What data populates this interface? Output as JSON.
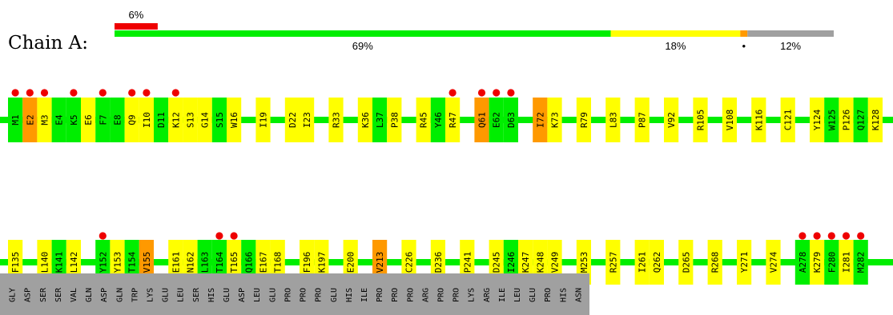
{
  "chart_data": {
    "type": "residue-quality-plot",
    "chain_label": "Chain A:",
    "top_bar_label": "6%",
    "summary_segments": [
      {
        "category": "good",
        "percent": 69,
        "label": "69%",
        "color": "#00ee00"
      },
      {
        "category": "fair",
        "percent": 18,
        "label": "18%",
        "color": "#ffff00"
      },
      {
        "category": "poor",
        "percent": 1,
        "label": "•",
        "color": "#ff9900"
      },
      {
        "category": "missing",
        "percent": 12,
        "label": "12%",
        "color": "#a0a0a0"
      }
    ],
    "outlier_percent": 6,
    "colors": {
      "good": "#00ee00",
      "fair": "#ffff00",
      "poor": "#ff9900",
      "missing": "#a0a0a0",
      "outlier": "#ee0000"
    },
    "rows": [
      [
        {
          "label": "M1",
          "q": "good",
          "dot": true
        },
        {
          "label": "E2",
          "q": "poor",
          "dot": true
        },
        {
          "label": "M3",
          "q": "fair",
          "dot": true
        },
        {
          "label": "E4",
          "q": "good",
          "dot": false
        },
        {
          "label": "K5",
          "q": "good",
          "dot": true
        },
        {
          "label": "E6",
          "q": "fair",
          "dot": false
        },
        {
          "label": "F7",
          "q": "good",
          "dot": true
        },
        {
          "label": "E8",
          "q": "good",
          "dot": false
        },
        {
          "label": "Q9",
          "q": "fair",
          "dot": true
        },
        {
          "label": "I10",
          "q": "fair",
          "dot": true
        },
        {
          "label": "D11",
          "q": "good",
          "dot": false
        },
        {
          "label": "K12",
          "q": "fair",
          "dot": true
        },
        {
          "label": "S13",
          "q": "fair",
          "dot": false
        },
        {
          "label": "G14",
          "q": "fair",
          "dot": false
        },
        {
          "label": "S15",
          "q": "good",
          "dot": false
        },
        {
          "label": "W16",
          "q": "fair",
          "dot": false
        },
        {
          "gap": true
        },
        {
          "label": "I19",
          "q": "fair",
          "dot": false
        },
        {
          "gap": true
        },
        {
          "label": "D22",
          "q": "fair",
          "dot": false
        },
        {
          "label": "I23",
          "q": "fair",
          "dot": false
        },
        {
          "gap": true
        },
        {
          "label": "R33",
          "q": "fair",
          "dot": false
        },
        {
          "gap": true
        },
        {
          "label": "K36",
          "q": "fair",
          "dot": false
        },
        {
          "label": "L37",
          "q": "good",
          "dot": false
        },
        {
          "label": "P38",
          "q": "fair",
          "dot": false
        },
        {
          "gap": true
        },
        {
          "label": "R45",
          "q": "fair",
          "dot": false
        },
        {
          "label": "Y46",
          "q": "good",
          "dot": false
        },
        {
          "label": "R47",
          "q": "fair",
          "dot": true
        },
        {
          "gap": true
        },
        {
          "label": "Q61",
          "q": "poor",
          "dot": true
        },
        {
          "label": "E62",
          "q": "good",
          "dot": true
        },
        {
          "label": "D63",
          "q": "good",
          "dot": true
        },
        {
          "gap": true
        },
        {
          "label": "I72",
          "q": "poor",
          "dot": false
        },
        {
          "label": "K73",
          "q": "fair",
          "dot": false
        },
        {
          "gap": true
        },
        {
          "label": "R79",
          "q": "fair",
          "dot": false
        },
        {
          "gap": true
        },
        {
          "label": "L83",
          "q": "fair",
          "dot": false
        },
        {
          "gap": true
        },
        {
          "label": "P87",
          "q": "fair",
          "dot": false
        },
        {
          "gap": true
        },
        {
          "label": "V92",
          "q": "fair",
          "dot": false
        },
        {
          "gap": true
        },
        {
          "label": "R105",
          "q": "fair",
          "dot": false
        },
        {
          "gap": true
        },
        {
          "label": "V108",
          "q": "fair",
          "dot": false
        },
        {
          "gap": true
        },
        {
          "label": "K116",
          "q": "fair",
          "dot": false
        },
        {
          "gap": true
        },
        {
          "label": "C121",
          "q": "fair",
          "dot": false
        },
        {
          "gap": true
        },
        {
          "label": "Y124",
          "q": "fair",
          "dot": false
        },
        {
          "label": "W125",
          "q": "good",
          "dot": false
        },
        {
          "label": "P126",
          "q": "fair",
          "dot": false
        },
        {
          "label": "Q127",
          "q": "good",
          "dot": false
        },
        {
          "label": "K128",
          "q": "fair",
          "dot": false
        }
      ],
      [
        {
          "label": "F135",
          "q": "fair",
          "dot": false
        },
        {
          "gap": true
        },
        {
          "label": "L140",
          "q": "fair",
          "dot": false
        },
        {
          "label": "K141",
          "q": "good",
          "dot": false
        },
        {
          "label": "L142",
          "q": "fair",
          "dot": false
        },
        {
          "gap": true
        },
        {
          "label": "Y152",
          "q": "good",
          "dot": true
        },
        {
          "label": "Y153",
          "q": "fair",
          "dot": false
        },
        {
          "label": "T154",
          "q": "good",
          "dot": false
        },
        {
          "label": "V155",
          "q": "poor",
          "dot": false
        },
        {
          "gap": true
        },
        {
          "label": "E161",
          "q": "fair",
          "dot": false
        },
        {
          "label": "N162",
          "q": "fair",
          "dot": false
        },
        {
          "label": "L163",
          "q": "good",
          "dot": false
        },
        {
          "label": "T164",
          "q": "good",
          "dot": true
        },
        {
          "label": "T165",
          "q": "fair",
          "dot": true
        },
        {
          "label": "Q166",
          "q": "good",
          "dot": false
        },
        {
          "label": "E167",
          "q": "fair",
          "dot": false
        },
        {
          "label": "T168",
          "q": "fair",
          "dot": false
        },
        {
          "gap": true
        },
        {
          "label": "F196",
          "q": "fair",
          "dot": false
        },
        {
          "label": "K197",
          "q": "fair",
          "dot": false
        },
        {
          "gap": true
        },
        {
          "label": "E200",
          "q": "fair",
          "dot": false
        },
        {
          "gap": true
        },
        {
          "label": "V213",
          "q": "poor",
          "dot": false
        },
        {
          "gap": true
        },
        {
          "label": "C226",
          "q": "fair",
          "dot": false
        },
        {
          "gap": true
        },
        {
          "label": "D236",
          "q": "fair",
          "dot": false
        },
        {
          "gap": true
        },
        {
          "label": "P241",
          "q": "fair",
          "dot": false
        },
        {
          "gap": true
        },
        {
          "label": "D245",
          "q": "fair",
          "dot": false
        },
        {
          "label": "I246",
          "q": "good",
          "dot": false
        },
        {
          "label": "K247",
          "q": "fair",
          "dot": false
        },
        {
          "label": "K248",
          "q": "fair",
          "dot": false
        },
        {
          "label": "V249",
          "q": "fair",
          "dot": false
        },
        {
          "gap": true
        },
        {
          "label": "M253",
          "q": "fair",
          "dot": false
        },
        {
          "gap": true
        },
        {
          "label": "R257",
          "q": "fair",
          "dot": false
        },
        {
          "gap": true
        },
        {
          "label": "I261",
          "q": "fair",
          "dot": false
        },
        {
          "label": "Q262",
          "q": "fair",
          "dot": false
        },
        {
          "gap": true
        },
        {
          "label": "D265",
          "q": "fair",
          "dot": false
        },
        {
          "gap": true
        },
        {
          "label": "R268",
          "q": "fair",
          "dot": false
        },
        {
          "gap": true
        },
        {
          "label": "Y271",
          "q": "fair",
          "dot": false
        },
        {
          "gap": true
        },
        {
          "label": "V274",
          "q": "fair",
          "dot": false
        },
        {
          "gap": true
        },
        {
          "label": "A278",
          "q": "good",
          "dot": true
        },
        {
          "label": "K279",
          "q": "fair",
          "dot": true
        },
        {
          "label": "F280",
          "q": "good",
          "dot": true
        },
        {
          "label": "I281",
          "q": "fair",
          "dot": true
        },
        {
          "label": "M282",
          "q": "good",
          "dot": true
        }
      ]
    ],
    "unmodelled": [
      "GLY",
      "ASP",
      "SER",
      "SER",
      "VAL",
      "GLN",
      "ASP",
      "GLN",
      "TRP",
      "LYS",
      "GLU",
      "LEU",
      "SER",
      "HIS",
      "GLU",
      "ASP",
      "LEU",
      "GLU",
      "PRO",
      "PRO",
      "PRO",
      "GLU",
      "HIS",
      "ILE",
      "PRO",
      "PRO",
      "PRO",
      "ARG",
      "PRO",
      "PRO",
      "LYS",
      "ARG",
      "ILE",
      "LEU",
      "GLU",
      "PRO",
      "HIS",
      "ASN"
    ]
  }
}
